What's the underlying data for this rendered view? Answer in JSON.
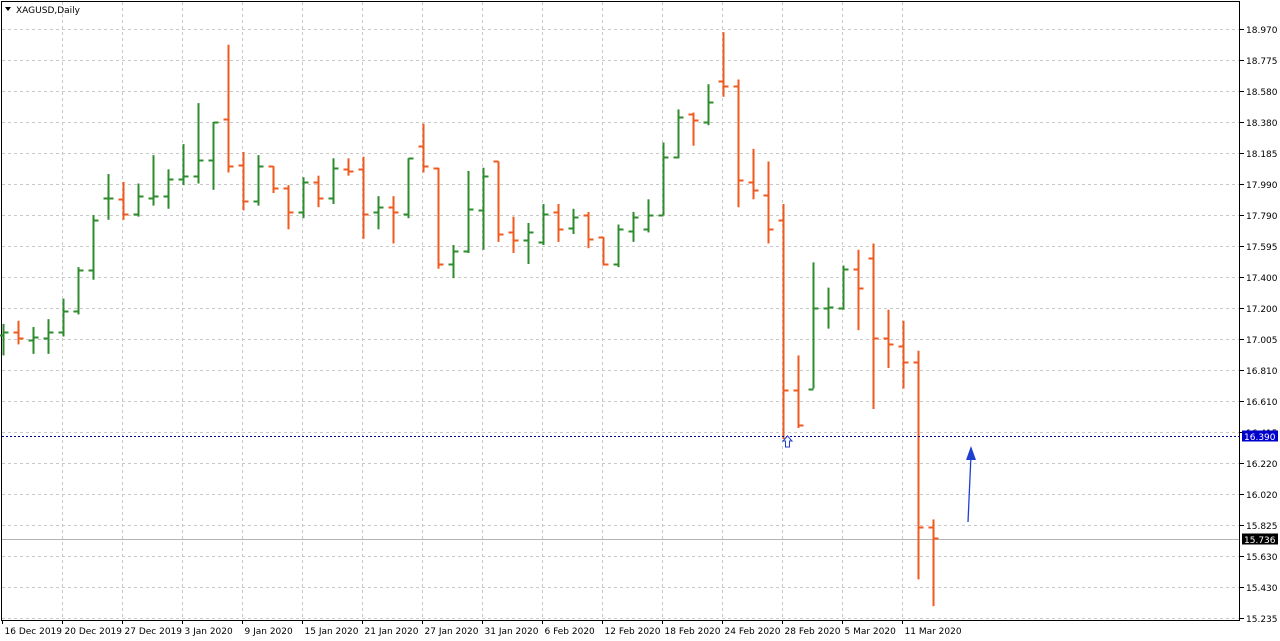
{
  "window": {
    "title": "XAGUSD,Daily"
  },
  "price_markers": {
    "horizontal_line": "16.390",
    "current_price": "15.736"
  },
  "colors": {
    "bull": "#2e8b2e",
    "bear": "#f05a1e",
    "grid": "#c8c8c8",
    "axis": "#000000",
    "hline": "#00008b",
    "hline_label_bg": "#0000cd",
    "price_label_bg": "#000000",
    "arrow": "#1f3fd1"
  },
  "chart_data": {
    "type": "ohlc",
    "symbol": "XAGUSD",
    "timeframe": "Daily",
    "ylim": [
      15.235,
      19.07
    ],
    "y_ticks": [
      "18.970",
      "18.775",
      "18.580",
      "18.380",
      "18.185",
      "17.990",
      "17.790",
      "17.595",
      "17.400",
      "17.200",
      "17.005",
      "16.810",
      "16.610",
      "16.415",
      "16.220",
      "16.020",
      "15.825",
      "15.630",
      "15.430",
      "15.235"
    ],
    "x_ticks": [
      {
        "label": "16 Dec 2019",
        "bar": 0
      },
      {
        "label": "20 Dec 2019",
        "bar": 4
      },
      {
        "label": "27 Dec 2019",
        "bar": 8
      },
      {
        "label": "3 Jan 2020",
        "bar": 12
      },
      {
        "label": "9 Jan 2020",
        "bar": 16
      },
      {
        "label": "15 Jan 2020",
        "bar": 20
      },
      {
        "label": "21 Jan 2020",
        "bar": 24
      },
      {
        "label": "27 Jan 2020",
        "bar": 28
      },
      {
        "label": "31 Jan 2020",
        "bar": 32
      },
      {
        "label": "6 Feb 2020",
        "bar": 36
      },
      {
        "label": "12 Feb 2020",
        "bar": 40
      },
      {
        "label": "18 Feb 2020",
        "bar": 44
      },
      {
        "label": "24 Feb 2020",
        "bar": 48
      },
      {
        "label": "28 Feb 2020",
        "bar": 52
      },
      {
        "label": "5 Mar 2020",
        "bar": 56
      },
      {
        "label": "11 Mar 2020",
        "bar": 60
      }
    ],
    "bars": [
      {
        "o": 17.03,
        "h": 17.1,
        "l": 16.9,
        "c": 17.05
      },
      {
        "o": 17.05,
        "h": 17.12,
        "l": 16.97,
        "c": 17.01
      },
      {
        "o": 17.0,
        "h": 17.08,
        "l": 16.91,
        "c": 17.02
      },
      {
        "o": 17.01,
        "h": 17.13,
        "l": 16.91,
        "c": 17.05
      },
      {
        "o": 17.05,
        "h": 17.26,
        "l": 17.02,
        "c": 17.18
      },
      {
        "o": 17.18,
        "h": 17.46,
        "l": 17.16,
        "c": 17.44
      },
      {
        "o": 17.44,
        "h": 17.79,
        "l": 17.38,
        "c": 17.76
      },
      {
        "o": 17.9,
        "h": 18.05,
        "l": 17.76,
        "c": 17.9
      },
      {
        "o": 17.89,
        "h": 18.0,
        "l": 17.76,
        "c": 17.8
      },
      {
        "o": 17.8,
        "h": 17.99,
        "l": 17.78,
        "c": 17.91
      },
      {
        "o": 17.9,
        "h": 18.17,
        "l": 17.85,
        "c": 17.91
      },
      {
        "o": 17.91,
        "h": 18.08,
        "l": 17.83,
        "c": 18.02
      },
      {
        "o": 18.02,
        "h": 18.24,
        "l": 17.98,
        "c": 18.04
      },
      {
        "o": 18.04,
        "h": 18.5,
        "l": 17.99,
        "c": 18.14
      },
      {
        "o": 18.14,
        "h": 18.38,
        "l": 17.95,
        "c": 18.38
      },
      {
        "o": 18.4,
        "h": 18.87,
        "l": 18.06,
        "c": 18.1
      },
      {
        "o": 18.11,
        "h": 18.19,
        "l": 17.82,
        "c": 17.88
      },
      {
        "o": 17.88,
        "h": 18.17,
        "l": 17.85,
        "c": 18.1
      },
      {
        "o": 18.1,
        "h": 18.1,
        "l": 17.93,
        "c": 17.96
      },
      {
        "o": 17.96,
        "h": 17.98,
        "l": 17.7,
        "c": 17.81
      },
      {
        "o": 17.81,
        "h": 18.03,
        "l": 17.77,
        "c": 18.0
      },
      {
        "o": 18.0,
        "h": 18.04,
        "l": 17.84,
        "c": 17.9
      },
      {
        "o": 17.9,
        "h": 18.15,
        "l": 17.86,
        "c": 18.09
      },
      {
        "o": 18.08,
        "h": 18.15,
        "l": 18.04,
        "c": 18.07
      },
      {
        "o": 18.08,
        "h": 18.16,
        "l": 17.64,
        "c": 17.8
      },
      {
        "o": 17.81,
        "h": 17.91,
        "l": 17.7,
        "c": 17.84
      },
      {
        "o": 17.84,
        "h": 17.91,
        "l": 17.61,
        "c": 17.81
      },
      {
        "o": 17.8,
        "h": 18.15,
        "l": 17.77,
        "c": 18.15
      },
      {
        "o": 18.23,
        "h": 18.37,
        "l": 18.06,
        "c": 18.1
      },
      {
        "o": 18.09,
        "h": 18.09,
        "l": 17.45,
        "c": 17.48
      },
      {
        "o": 17.48,
        "h": 17.6,
        "l": 17.39,
        "c": 17.56
      },
      {
        "o": 17.56,
        "h": 18.07,
        "l": 17.55,
        "c": 17.83
      },
      {
        "o": 17.82,
        "h": 18.09,
        "l": 17.57,
        "c": 18.04
      },
      {
        "o": 18.13,
        "h": 18.13,
        "l": 17.62,
        "c": 17.67
      },
      {
        "o": 17.68,
        "h": 17.78,
        "l": 17.55,
        "c": 17.63
      },
      {
        "o": 17.63,
        "h": 17.74,
        "l": 17.48,
        "c": 17.68
      },
      {
        "o": 17.62,
        "h": 17.86,
        "l": 17.6,
        "c": 17.8
      },
      {
        "o": 17.81,
        "h": 17.86,
        "l": 17.62,
        "c": 17.7
      },
      {
        "o": 17.71,
        "h": 17.83,
        "l": 17.67,
        "c": 17.78
      },
      {
        "o": 17.79,
        "h": 17.81,
        "l": 17.58,
        "c": 17.64
      },
      {
        "o": 17.65,
        "h": 17.65,
        "l": 17.47,
        "c": 17.48
      },
      {
        "o": 17.48,
        "h": 17.73,
        "l": 17.46,
        "c": 17.7
      },
      {
        "o": 17.69,
        "h": 17.81,
        "l": 17.62,
        "c": 17.78
      },
      {
        "o": 17.7,
        "h": 17.89,
        "l": 17.68,
        "c": 17.79
      },
      {
        "o": 17.79,
        "h": 18.25,
        "l": 17.79,
        "c": 18.16
      },
      {
        "o": 18.16,
        "h": 18.46,
        "l": 18.15,
        "c": 18.41
      },
      {
        "o": 18.43,
        "h": 18.44,
        "l": 18.23,
        "c": 18.39
      },
      {
        "o": 18.38,
        "h": 18.62,
        "l": 18.36,
        "c": 18.51
      },
      {
        "o": 18.64,
        "h": 18.95,
        "l": 18.54,
        "c": 18.61
      },
      {
        "o": 18.61,
        "h": 18.65,
        "l": 17.84,
        "c": 18.01
      },
      {
        "o": 18.0,
        "h": 18.21,
        "l": 17.89,
        "c": 17.95
      },
      {
        "o": 17.92,
        "h": 18.13,
        "l": 17.61,
        "c": 17.7
      },
      {
        "o": 17.76,
        "h": 17.86,
        "l": 16.37,
        "c": 16.68
      },
      {
        "o": 16.68,
        "h": 16.9,
        "l": 16.44,
        "c": 16.46
      },
      {
        "o": 16.69,
        "h": 17.49,
        "l": 16.69,
        "c": 17.2
      },
      {
        "o": 17.2,
        "h": 17.33,
        "l": 17.07,
        "c": 17.21
      },
      {
        "o": 17.2,
        "h": 17.47,
        "l": 17.19,
        "c": 17.45
      },
      {
        "o": 17.45,
        "h": 17.57,
        "l": 17.06,
        "c": 17.33
      },
      {
        "o": 17.52,
        "h": 17.61,
        "l": 16.56,
        "c": 17.01
      },
      {
        "o": 17.01,
        "h": 17.19,
        "l": 16.82,
        "c": 16.97
      },
      {
        "o": 16.96,
        "h": 17.12,
        "l": 16.69,
        "c": 16.86
      },
      {
        "o": 16.86,
        "h": 16.93,
        "l": 15.48,
        "c": 15.81
      },
      {
        "o": 15.81,
        "h": 15.86,
        "l": 15.31,
        "c": 15.74
      }
    ],
    "horizontal_line_value": 16.39,
    "current_price_value": 15.736,
    "grid": true,
    "legend": "none"
  }
}
